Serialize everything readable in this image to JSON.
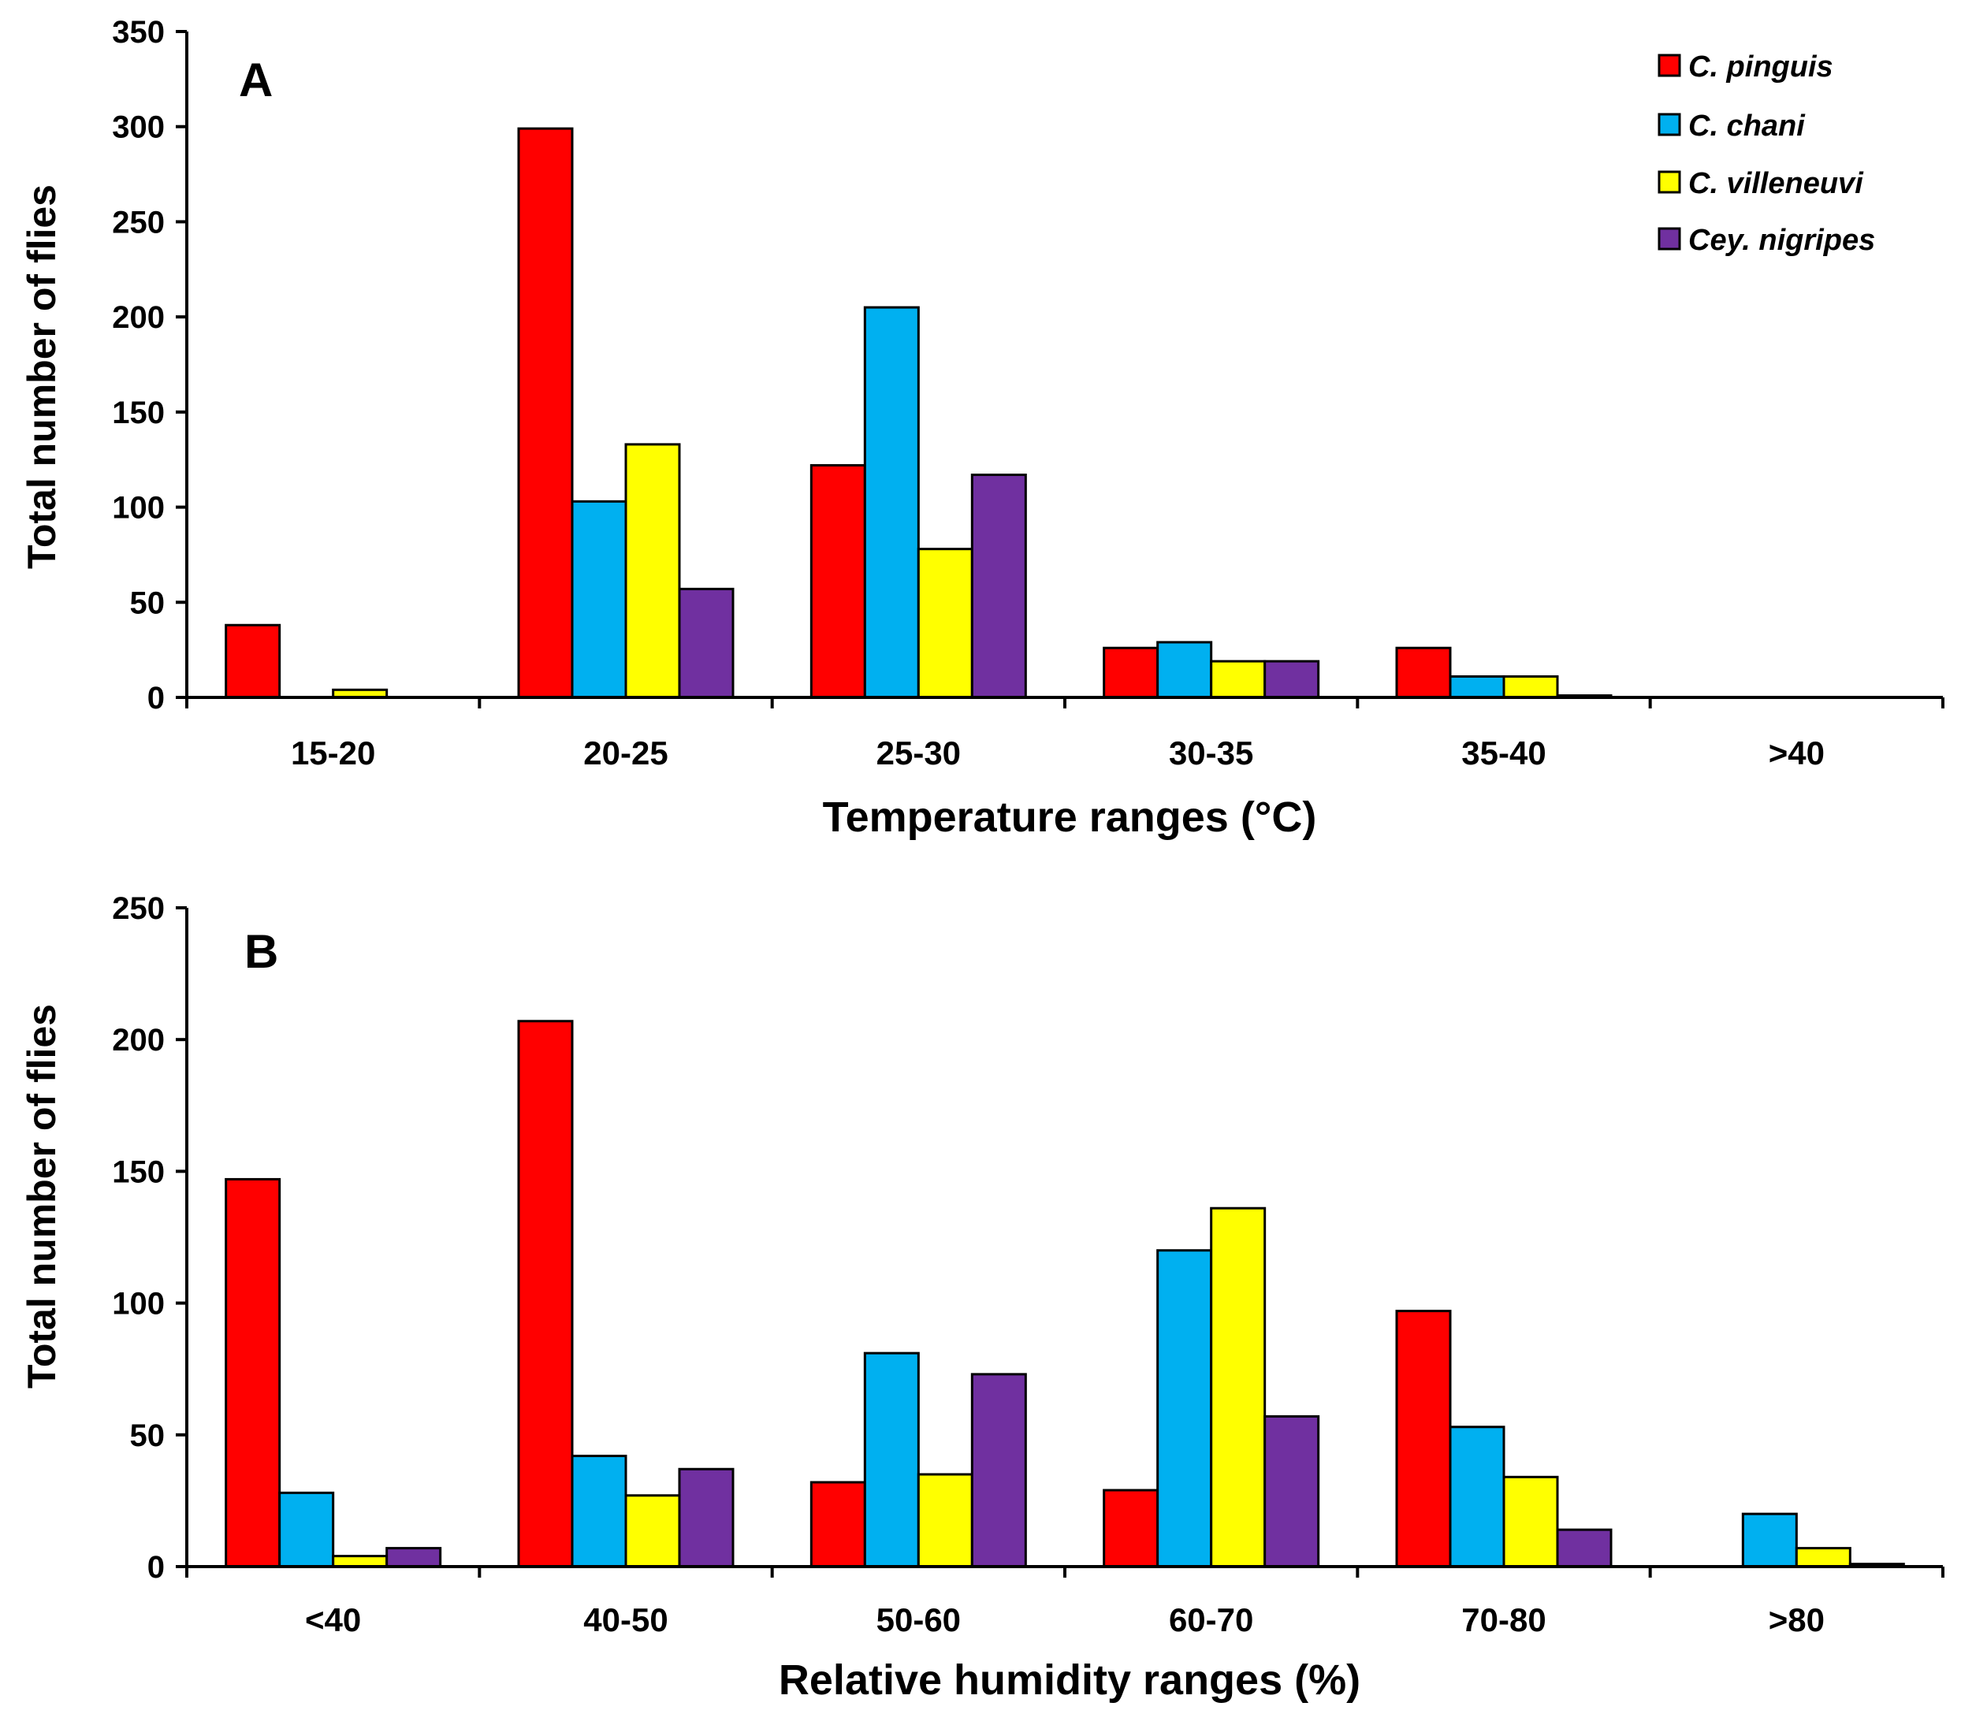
{
  "legend": {
    "items": [
      {
        "label": "C. pinguis",
        "color": "#ff0000"
      },
      {
        "label": "C. chani",
        "color": "#00b0f0"
      },
      {
        "label": "C. villeneuvi",
        "color": "#ffff00"
      },
      {
        "label": "Cey. nigripes",
        "color": "#7030a0"
      }
    ]
  },
  "chart_data": [
    {
      "type": "bar",
      "panel_label": "A",
      "categories": [
        "15-20",
        "20-25",
        "25-30",
        "30-35",
        "35-40",
        ">40"
      ],
      "series": [
        {
          "name": "C. pinguis",
          "color": "#ff0000",
          "values": [
            38,
            299,
            122,
            26,
            26,
            0
          ]
        },
        {
          "name": "C. chani",
          "color": "#00b0f0",
          "values": [
            0,
            103,
            205,
            29,
            11,
            0
          ]
        },
        {
          "name": "C. villeneuvi",
          "color": "#ffff00",
          "values": [
            4,
            133,
            78,
            19,
            11,
            0
          ]
        },
        {
          "name": "Cey. nigripes",
          "color": "#7030a0",
          "values": [
            0,
            57,
            117,
            19,
            1,
            0
          ]
        }
      ],
      "xlabel": "Temperature ranges (°C)",
      "ylabel": "Total number of flies",
      "ylim": [
        0,
        350
      ],
      "yticks": [
        "0",
        "50",
        "100",
        "150",
        "200",
        "250",
        "300",
        "350"
      ],
      "legend_position": "top-right",
      "grid": false
    },
    {
      "type": "bar",
      "panel_label": "B",
      "categories": [
        "<40",
        "40-50",
        "50-60",
        "60-70",
        "70-80",
        ">80"
      ],
      "series": [
        {
          "name": "C. pinguis",
          "color": "#ff0000",
          "values": [
            147,
            207,
            32,
            29,
            97,
            0
          ]
        },
        {
          "name": "C. chani",
          "color": "#00b0f0",
          "values": [
            28,
            42,
            81,
            120,
            53,
            20
          ]
        },
        {
          "name": "C. villeneuvi",
          "color": "#ffff00",
          "values": [
            4,
            27,
            35,
            136,
            34,
            7
          ]
        },
        {
          "name": "Cey. nigripes",
          "color": "#7030a0",
          "values": [
            7,
            37,
            73,
            57,
            14,
            1
          ]
        }
      ],
      "xlabel": "Relative humidity ranges (%)",
      "ylabel": "Total number of flies",
      "ylim": [
        0,
        250
      ],
      "yticks": [
        "0",
        "50",
        "100",
        "150",
        "200",
        "250"
      ],
      "grid": false
    }
  ]
}
